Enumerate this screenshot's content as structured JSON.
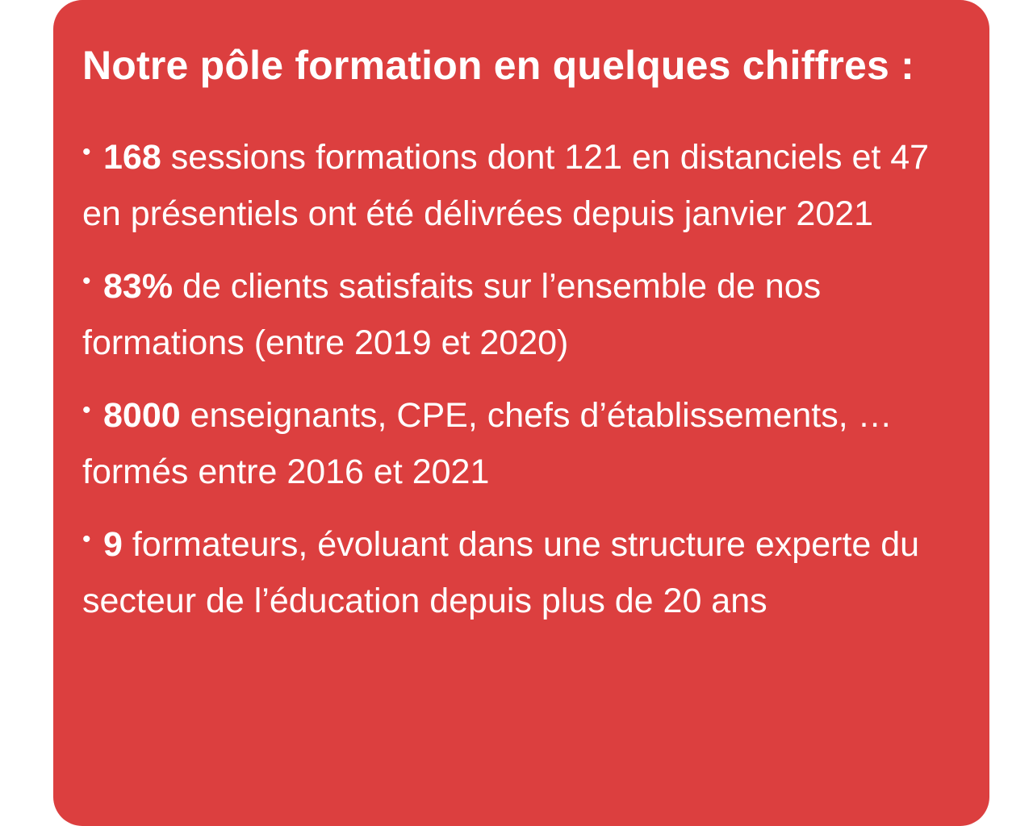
{
  "card": {
    "background_color": "#dc3f3f",
    "text_color": "#ffffff",
    "title": "Notre pôle formation en quelques chiffres :",
    "bullet_glyph": "•",
    "stats": [
      {
        "value": "168",
        "text": " sessions formations dont 121 en distanciels et 47 en présentiels ont été délivrées depuis janvier 2021"
      },
      {
        "value": "83%",
        "text": " de clients satisfaits sur l’ensemble de nos formations (entre 2019 et 2020)"
      },
      {
        "value": "8000",
        "text": " enseignants, CPE, chefs d’établissements, …  formés entre 2016 et 2021"
      },
      {
        "value": "9",
        "text": " formateurs, évoluant dans une structure experte du secteur de l’éducation depuis plus de 20 ans"
      }
    ]
  }
}
